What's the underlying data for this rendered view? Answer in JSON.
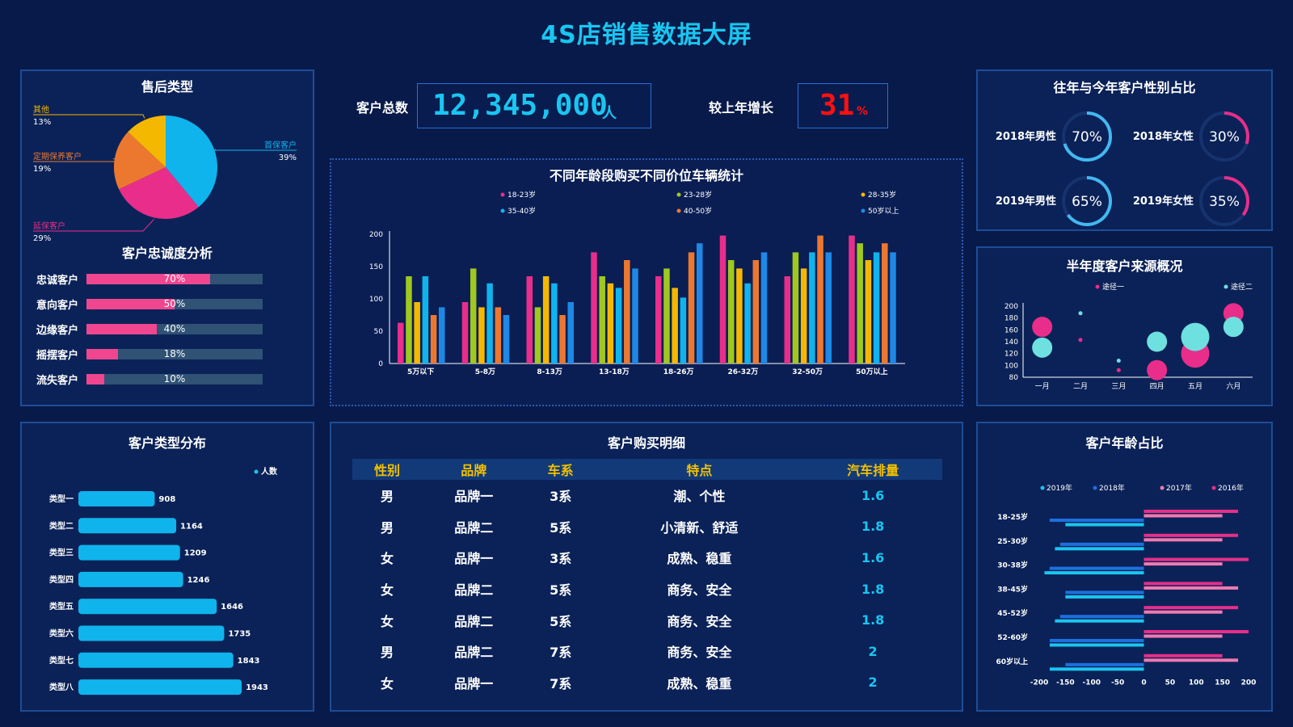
{
  "page_title": "4S店销售数据大屏",
  "kpis": {
    "total_label": "客户总数",
    "total_value": "12,345,000",
    "total_unit": "人",
    "growth_label": "较上年增长",
    "growth_value": "31",
    "growth_unit": "%"
  },
  "colors": {
    "background": "#081a4a",
    "panel": "#0b2258",
    "accent_cyan": "#19c6f0",
    "pink": "#e82e8a",
    "growth_red": "#ff1010"
  },
  "aftersales": {
    "title": "售后类型",
    "labels": [
      "其他",
      "定期保养客户",
      "延保客户",
      "首保客户"
    ],
    "pcts": [
      "13%",
      "19%",
      "29%",
      "39%"
    ]
  },
  "loyalty": {
    "title": "客户忠诚度分析",
    "rows": [
      {
        "label": "忠诚客户",
        "pct_text": "70%",
        "value": 70
      },
      {
        "label": "意向客户",
        "pct_text": "50%",
        "value": 50
      },
      {
        "label": "边缘客户",
        "pct_text": "40%",
        "value": 40
      },
      {
        "label": "摇摆客户",
        "pct_text": "18%",
        "value": 18
      },
      {
        "label": "流失客户",
        "pct_text": "10%",
        "value": 10
      }
    ]
  },
  "age_price": {
    "title": "不同年龄段购买不同价位车辆统计",
    "y_ticks": [
      "0",
      "50",
      "100",
      "150",
      "200"
    ]
  },
  "gender": {
    "title": "往年与今年客户性别占比",
    "items": [
      {
        "label": "2018年男性",
        "pct": "70%"
      },
      {
        "label": "2018年女性",
        "pct": "30%"
      },
      {
        "label": "2019年男性",
        "pct": "65%"
      },
      {
        "label": "2019年女性",
        "pct": "35%"
      }
    ]
  },
  "source": {
    "title": "半年度客户来源概况",
    "legend": [
      "途径一",
      "途径二"
    ],
    "y_ticks": [
      "80",
      "100",
      "120",
      "140",
      "160",
      "180",
      "200"
    ]
  },
  "cust_type": {
    "title": "客户类型分布",
    "legend": "人数"
  },
  "detail": {
    "title": "客户购买明细",
    "headers": [
      "性别",
      "品牌",
      "车系",
      "特点",
      "汽车排量"
    ],
    "rows": [
      [
        "男",
        "品牌一",
        "3系",
        "潮、个性",
        "1.6"
      ],
      [
        "男",
        "品牌二",
        "5系",
        "小清新、舒适",
        "1.8"
      ],
      [
        "女",
        "品牌一",
        "3系",
        "成熟、稳重",
        "1.6"
      ],
      [
        "女",
        "品牌二",
        "5系",
        "商务、安全",
        "1.8"
      ],
      [
        "女",
        "品牌二",
        "5系",
        "商务、安全",
        "1.8"
      ],
      [
        "男",
        "品牌二",
        "7系",
        "商务、安全",
        "2"
      ],
      [
        "女",
        "品牌一",
        "7系",
        "成熟、稳重",
        "2"
      ]
    ]
  },
  "age_ratio": {
    "title": "客户年龄占比"
  },
  "chart_data": [
    {
      "type": "pie",
      "title": "售后类型",
      "categories": [
        "首保客户",
        "延保客户",
        "定期保养客户",
        "其他"
      ],
      "values": [
        39,
        29,
        19,
        13
      ],
      "colors": [
        "#0fb4ec",
        "#e82e8a",
        "#ec7830",
        "#f5b800"
      ]
    },
    {
      "type": "bar",
      "title": "客户忠诚度分析",
      "categories": [
        "忠诚客户",
        "意向客户",
        "边缘客户",
        "摇摆客户",
        "流失客户"
      ],
      "values": [
        70,
        50,
        40,
        18,
        10
      ],
      "ylim": [
        0,
        100
      ]
    },
    {
      "type": "bar",
      "title": "不同年龄段购买不同价位车辆统计",
      "categories": [
        "5万以下",
        "5-8万",
        "8-13万",
        "13-18万",
        "18-26万",
        "26-32万",
        "32-50万",
        "50万以上"
      ],
      "ylim": [
        0,
        200
      ],
      "series": [
        {
          "name": "18-23岁",
          "color": "#e82e8a",
          "values": [
            63,
            95,
            135,
            172,
            135,
            198,
            135,
            198
          ]
        },
        {
          "name": "23-28岁",
          "color": "#a0c81e",
          "values": [
            135,
            147,
            87,
            135,
            147,
            160,
            172,
            186
          ]
        },
        {
          "name": "28-35岁",
          "color": "#f5b800",
          "values": [
            95,
            87,
            135,
            124,
            117,
            147,
            147,
            160
          ]
        },
        {
          "name": "35-40岁",
          "color": "#0fb4ec",
          "values": [
            135,
            124,
            124,
            117,
            102,
            124,
            172,
            172
          ]
        },
        {
          "name": "40-50岁",
          "color": "#ec7830",
          "values": [
            75,
            87,
            75,
            160,
            172,
            160,
            198,
            186
          ]
        },
        {
          "name": "50岁以上",
          "color": "#1e88e5",
          "values": [
            87,
            75,
            95,
            147,
            186,
            172,
            172,
            172
          ]
        }
      ]
    },
    {
      "type": "pie",
      "title": "往年与今年客户性别占比",
      "categories": [
        "2018年男性",
        "2018年女性",
        "2019年男性",
        "2019年女性"
      ],
      "values": [
        70,
        30,
        65,
        35
      ]
    },
    {
      "type": "scatter",
      "title": "半年度客户来源概况",
      "x": [
        "一月",
        "二月",
        "三月",
        "四月",
        "五月",
        "六月"
      ],
      "ylim": [
        80,
        200
      ],
      "series": [
        {
          "name": "途径一",
          "color": "#e82e8a",
          "values": [
            165,
            143,
            92,
            92,
            120,
            188
          ],
          "sizes": [
            25,
            5,
            5,
            25,
            35,
            25
          ]
        },
        {
          "name": "途径二",
          "color": "#6ee0e0",
          "values": [
            130,
            188,
            108,
            140,
            148,
            165
          ],
          "sizes": [
            25,
            5,
            5,
            25,
            35,
            25
          ]
        }
      ]
    },
    {
      "type": "bar",
      "title": "客户类型分布",
      "categories": [
        "类型一",
        "类型二",
        "类型三",
        "类型四",
        "类型五",
        "类型六",
        "类型七",
        "类型八"
      ],
      "series": [
        {
          "name": "人数",
          "values": [
            908,
            1164,
            1209,
            1246,
            1646,
            1735,
            1843,
            1943
          ]
        }
      ]
    },
    {
      "type": "bar",
      "title": "客户年龄占比",
      "categories": [
        "18-25岁",
        "25-30岁",
        "30-38岁",
        "38-45岁",
        "45-52岁",
        "52-60岁",
        "60岁以上"
      ],
      "xlim": [
        -200,
        200
      ],
      "x_ticks": [
        "-200",
        "-150",
        "-100",
        "-50",
        "0",
        "50",
        "100",
        "150",
        "200"
      ],
      "series": [
        {
          "name": "2019年",
          "color": "#19c6f0",
          "values": [
            -150,
            -170,
            -190,
            -150,
            -170,
            -180,
            -180
          ]
        },
        {
          "name": "2018年",
          "color": "#1e6fe0",
          "values": [
            -180,
            -160,
            -180,
            -150,
            -160,
            -180,
            -150
          ]
        },
        {
          "name": "2017年",
          "color": "#f07ab0",
          "values": [
            150,
            150,
            150,
            180,
            150,
            150,
            180
          ]
        },
        {
          "name": "2016年",
          "color": "#e82e8a",
          "values": [
            180,
            180,
            200,
            150,
            180,
            200,
            150
          ]
        }
      ]
    }
  ]
}
